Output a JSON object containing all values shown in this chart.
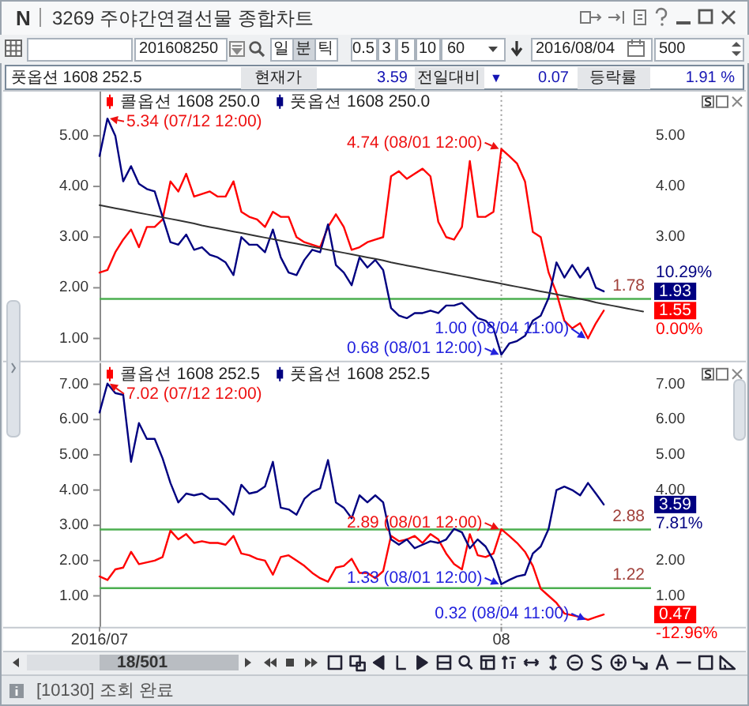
{
  "chart_data": [
    {
      "type": "line",
      "title": "3269 주야간연결선물 종합차트",
      "categories": [
        "2016/07",
        null,
        null,
        null,
        null,
        null,
        null,
        null,
        null,
        null,
        null,
        null,
        null,
        null,
        null,
        null,
        null,
        null,
        null,
        null,
        null,
        null,
        null,
        null,
        null,
        null,
        null,
        null,
        null,
        null,
        null,
        null,
        null,
        null,
        null,
        null,
        null,
        null,
        null,
        null,
        null,
        null,
        null,
        null,
        null,
        null,
        null,
        null,
        null,
        null,
        null,
        "08",
        null,
        null,
        null,
        null,
        null,
        null,
        null,
        null,
        null,
        null,
        null,
        null,
        null,
        null,
        null,
        null,
        null,
        null
      ],
      "ylim": [
        0.56,
        5.89
      ],
      "yticks": [
        {
          "value": 1,
          "label": "1.00"
        },
        {
          "value": 2,
          "label": "2.00"
        },
        {
          "value": 3,
          "label": "3.00"
        },
        {
          "value": 4,
          "label": "4.00"
        },
        {
          "value": 5,
          "label": "5.00"
        }
      ],
      "y2lim": [
        0.56,
        5.89
      ],
      "y2ticks": [
        {
          "value": 3,
          "label": "3.00"
        },
        {
          "value": 4,
          "label": "4.00"
        },
        {
          "value": 5,
          "label": "5.00"
        }
      ],
      "tick_labels": "y",
      "grid": "x",
      "legend": "top left",
      "series": [
        {
          "name": "콜옵션 1608 250.0",
          "color": "#ff0000",
          "values": [
            2.3,
            2.35,
            2.7,
            2.95,
            3.15,
            2.8,
            3.2,
            3.2,
            3.35,
            4.1,
            3.9,
            4.25,
            3.8,
            3.85,
            3.9,
            3.8,
            3.8,
            4.1,
            3.5,
            3.4,
            3.35,
            3.2,
            3.5,
            3.4,
            3.4,
            3.0,
            2.9,
            2.85,
            2.8,
            3.2,
            3.45,
            3.2,
            2.75,
            2.8,
            2.9,
            2.95,
            3.0,
            4.2,
            4.3,
            4.15,
            4.25,
            4.35,
            4.2,
            3.3,
            3.0,
            2.95,
            3.2,
            4.5,
            3.4,
            3.4,
            3.5,
            4.74,
            4.6,
            4.45,
            4.1,
            3.1,
            3.0,
            2.3,
            1.9,
            1.35,
            1.2,
            1.3,
            1.0,
            1.3,
            1.55,
            null,
            null,
            null,
            null,
            null
          ],
          "value_labels": [
            null,
            null,
            null,
            null,
            null,
            null,
            null,
            null,
            null,
            null,
            null,
            null,
            null,
            null,
            null,
            null,
            null,
            null,
            null,
            null,
            null,
            null,
            null,
            null,
            null,
            null,
            null,
            null,
            null,
            null,
            null,
            null,
            null,
            null,
            null,
            null,
            null,
            null,
            null,
            null,
            null,
            null,
            null,
            null,
            null,
            null,
            null,
            null,
            null,
            null,
            null,
            "4.74 (08/01 12:00)",
            null,
            null,
            null,
            null,
            null,
            null,
            null,
            null,
            null,
            null,
            "1.00 (08/04 11:00)",
            null,
            null,
            null,
            null,
            null,
            null,
            null
          ]
        },
        {
          "name": "풋옵션 1608 250.0",
          "color": "#000080",
          "values": [
            4.6,
            5.34,
            5.0,
            4.1,
            4.4,
            4.05,
            3.95,
            3.9,
            3.4,
            2.9,
            2.85,
            3.05,
            2.75,
            2.8,
            2.65,
            2.6,
            2.5,
            2.25,
            3.0,
            2.85,
            2.85,
            2.7,
            3.15,
            2.6,
            2.3,
            2.25,
            2.55,
            2.75,
            2.7,
            3.25,
            2.45,
            2.3,
            2.05,
            2.6,
            2.4,
            2.55,
            2.35,
            1.6,
            1.45,
            1.4,
            1.5,
            1.5,
            1.55,
            1.5,
            1.65,
            1.65,
            1.7,
            1.55,
            1.4,
            1.35,
            1.2,
            0.68,
            0.9,
            0.95,
            1.05,
            1.35,
            1.45,
            1.8,
            2.5,
            2.2,
            2.45,
            2.2,
            2.4,
            2.0,
            1.93,
            null,
            null,
            null,
            null,
            null
          ],
          "value_labels": [
            null,
            "5.34 (07/12 12:00)",
            null,
            null,
            null,
            null,
            null,
            null,
            null,
            null,
            null,
            null,
            null,
            null,
            null,
            null,
            null,
            null,
            null,
            null,
            null,
            null,
            null,
            null,
            null,
            null,
            null,
            null,
            null,
            null,
            null,
            null,
            null,
            null,
            null,
            null,
            null,
            null,
            null,
            null,
            null,
            null,
            null,
            null,
            null,
            null,
            null,
            null,
            null,
            null,
            null,
            "0.68 (08/01 12:00)",
            null,
            null,
            null,
            null,
            null,
            null,
            null,
            null,
            null,
            null,
            null,
            null,
            null,
            null,
            null,
            null,
            null,
            null
          ]
        },
        {
          "color": "#333333",
          "values": [
            3.63,
            3.6,
            3.57,
            3.54,
            3.51,
            3.48,
            3.45,
            3.42,
            3.39,
            3.36,
            3.33,
            3.3,
            3.27,
            3.23,
            3.2,
            3.17,
            3.14,
            3.11,
            3.08,
            3.05,
            3.02,
            2.99,
            2.96,
            2.93,
            2.9,
            2.87,
            2.84,
            2.81,
            2.78,
            2.75,
            2.72,
            2.69,
            2.66,
            2.63,
            2.6,
            2.57,
            2.54,
            2.5,
            2.47,
            2.44,
            2.41,
            2.38,
            2.35,
            2.32,
            2.29,
            2.26,
            2.23,
            2.2,
            2.17,
            2.14,
            2.11,
            2.08,
            2.05,
            2.02,
            1.99,
            1.96,
            1.93,
            1.9,
            1.87,
            1.84,
            1.81,
            1.78,
            1.75,
            1.71,
            1.68,
            1.65,
            1.62,
            1.59,
            1.56,
            1.53
          ]
        }
      ],
      "ref_lines": [
        {
          "axis": "y",
          "value": 1.78,
          "label": "1.78",
          "color": "#4caf50"
        }
      ],
      "annotations": [
        "N",
        "201608250",
        "일",
        "분",
        "틱",
        "0.5",
        "3",
        "5",
        "10",
        "60",
        "2016/08/04",
        "500",
        "풋옵션 1608 252.5",
        "현재가",
        "3.59",
        "전일대비",
        "▼",
        "0.07",
        "등락률",
        "1.91 %",
        "1.93",
        "10.29%",
        "1.55",
        "0.00%"
      ]
    },
    {
      "type": "line",
      "categories": [
        "2016/07",
        null,
        null,
        null,
        null,
        null,
        null,
        null,
        null,
        null,
        null,
        null,
        null,
        null,
        null,
        null,
        null,
        null,
        null,
        null,
        null,
        null,
        null,
        null,
        null,
        null,
        null,
        null,
        null,
        null,
        null,
        null,
        null,
        null,
        null,
        null,
        null,
        null,
        null,
        null,
        null,
        null,
        null,
        null,
        null,
        null,
        null,
        null,
        null,
        null,
        null,
        "08",
        null,
        null,
        null,
        null,
        null,
        null,
        null,
        null,
        null,
        null,
        null,
        null,
        null,
        null,
        null,
        null,
        null,
        null
      ],
      "ylim": [
        0.12,
        7.6
      ],
      "yticks": [
        {
          "value": 1,
          "label": "1.00"
        },
        {
          "value": 2,
          "label": "2.00"
        },
        {
          "value": 3,
          "label": "3.00"
        },
        {
          "value": 4,
          "label": "4.00"
        },
        {
          "value": 5,
          "label": "5.00"
        },
        {
          "value": 6,
          "label": "6.00"
        },
        {
          "value": 7,
          "label": "7.00"
        }
      ],
      "y2lim": [
        0.12,
        7.6
      ],
      "y2ticks": [
        {
          "value": 1,
          "label": "1.00"
        },
        {
          "value": 2,
          "label": "2.00"
        },
        {
          "value": 4,
          "label": "4.00"
        },
        {
          "value": 5,
          "label": "5.00"
        },
        {
          "value": 6,
          "label": "6.00"
        },
        {
          "value": 7,
          "label": "7.00"
        }
      ],
      "grid": "x",
      "legend": "top left",
      "series": [
        {
          "name": "콜옵션 1608 252.5",
          "color": "#ff0000",
          "values": [
            1.55,
            1.45,
            1.75,
            1.8,
            2.25,
            1.9,
            1.95,
            2.0,
            2.1,
            2.85,
            2.6,
            2.75,
            2.5,
            2.55,
            2.5,
            2.5,
            2.45,
            2.7,
            2.2,
            2.15,
            2.05,
            2.0,
            1.6,
            2.1,
            2.15,
            2.0,
            1.85,
            1.65,
            1.5,
            1.4,
            1.8,
            1.85,
            2.05,
            1.65,
            1.65,
            1.5,
            1.7,
            2.7,
            2.55,
            2.6,
            2.7,
            2.5,
            2.75,
            2.6,
            2.2,
            1.9,
            1.75,
            2.75,
            2.15,
            2.1,
            2.2,
            2.89,
            2.7,
            2.5,
            2.25,
            1.85,
            1.2,
            1.0,
            0.8,
            0.5,
            0.45,
            0.4,
            0.32,
            0.4,
            0.47,
            null,
            null,
            null,
            null,
            null
          ],
          "value_labels": [
            null,
            null,
            null,
            null,
            null,
            null,
            null,
            null,
            null,
            null,
            null,
            null,
            null,
            null,
            null,
            null,
            null,
            null,
            null,
            null,
            null,
            null,
            null,
            null,
            null,
            null,
            null,
            null,
            null,
            null,
            null,
            null,
            null,
            null,
            null,
            null,
            null,
            null,
            null,
            null,
            null,
            null,
            null,
            null,
            null,
            null,
            null,
            null,
            null,
            null,
            null,
            "2.89 (08/01 12:00)",
            null,
            null,
            null,
            null,
            null,
            null,
            null,
            null,
            null,
            null,
            "0.32 (08/04 11:00)",
            null,
            null,
            null,
            null,
            null,
            null,
            null
          ]
        },
        {
          "name": "풋옵션 1608 252.5",
          "color": "#000080",
          "values": [
            6.2,
            7.02,
            6.75,
            6.7,
            4.8,
            5.9,
            5.45,
            5.45,
            4.9,
            4.2,
            3.65,
            3.9,
            3.85,
            3.9,
            3.75,
            3.75,
            3.55,
            3.3,
            4.15,
            3.9,
            3.95,
            4.1,
            4.8,
            3.5,
            3.45,
            3.3,
            3.75,
            3.95,
            4.05,
            4.85,
            3.65,
            3.5,
            3.2,
            3.85,
            3.65,
            3.85,
            3.65,
            2.6,
            2.45,
            2.6,
            2.35,
            2.45,
            2.55,
            2.5,
            2.6,
            2.9,
            2.8,
            2.35,
            2.6,
            2.4,
            2.0,
            1.33,
            1.45,
            1.55,
            1.6,
            2.2,
            2.4,
            2.9,
            4.0,
            4.1,
            4.0,
            3.85,
            4.2,
            3.9,
            3.59,
            null,
            null,
            null,
            null,
            null
          ],
          "value_labels": [
            null,
            "7.02 (07/12 12:00)",
            null,
            null,
            null,
            null,
            null,
            null,
            null,
            null,
            null,
            null,
            null,
            null,
            null,
            null,
            null,
            null,
            null,
            null,
            null,
            null,
            null,
            null,
            null,
            null,
            null,
            null,
            null,
            null,
            null,
            null,
            null,
            null,
            null,
            null,
            null,
            null,
            null,
            null,
            null,
            null,
            null,
            null,
            null,
            null,
            null,
            null,
            null,
            null,
            null,
            "1.33 (08/01 12:00)",
            null,
            null,
            null,
            null,
            null,
            null,
            null,
            null,
            null,
            null,
            null,
            null,
            null,
            null,
            null,
            null,
            null,
            null
          ]
        }
      ],
      "ref_lines": [
        {
          "axis": "y",
          "value": 2.88,
          "label": "2.88",
          "color": "#4caf50"
        },
        {
          "axis": "y",
          "value": 1.22,
          "label": "1.22",
          "color": "#4caf50"
        }
      ],
      "annotations": [
        "3.59",
        "7.81%",
        "0.47",
        "-12.96%",
        "18/501",
        "[10130] 조회 완료"
      ]
    }
  ]
}
